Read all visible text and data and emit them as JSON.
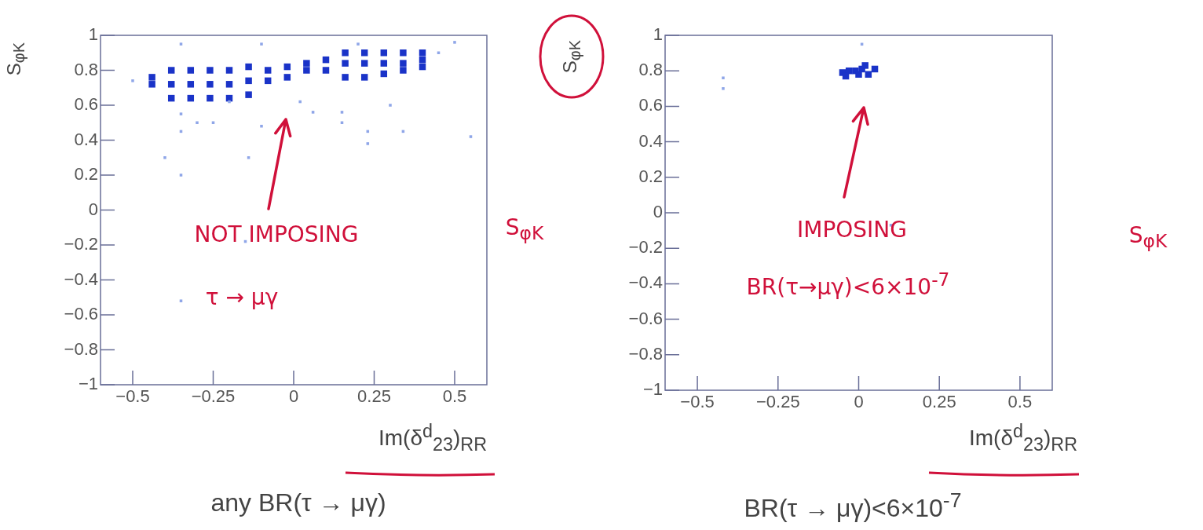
{
  "chart_data": [
    {
      "type": "scatter",
      "title": "any BR(τ → μγ)",
      "xlabel": "Im(δ$^{d}$$_{23}$)$_{RR}$",
      "ylabel": "S$_{φK}$",
      "xlim": [
        -0.6,
        0.6
      ],
      "ylim": [
        -1,
        1
      ],
      "xticks": [
        -0.5,
        -0.25,
        0,
        0.25,
        0.5
      ],
      "yticks": [
        -1,
        -0.8,
        -0.6,
        -0.4,
        -0.2,
        0,
        0.2,
        0.4,
        0.6,
        0.8,
        1
      ],
      "marker": "square",
      "series": [
        {
          "color": "#8fa6e8",
          "x": [
            -0.5,
            -0.35,
            -0.35,
            -0.35,
            -0.4,
            -0.3,
            -0.25,
            -0.14,
            -0.1,
            0.02,
            0.15,
            0.15,
            0.23,
            0.23,
            0.3,
            0.34,
            0.45,
            0.55,
            -0.35,
            -0.15,
            -0.35,
            -0.1,
            0.2,
            0.5,
            0.06,
            -0.2
          ],
          "values": [
            0.74,
            0.55,
            0.45,
            0.2,
            0.3,
            0.5,
            0.5,
            0.3,
            0.48,
            0.62,
            0.5,
            0.56,
            0.45,
            0.38,
            0.6,
            0.45,
            0.9,
            0.42,
            -0.52,
            -0.18,
            0.95,
            0.95,
            0.95,
            0.96,
            0.56,
            0.62
          ]
        },
        {
          "color": "#1a33c8",
          "x": [
            -0.44,
            -0.44,
            -0.38,
            -0.38,
            -0.38,
            -0.32,
            -0.32,
            -0.32,
            -0.26,
            -0.26,
            -0.26,
            -0.2,
            -0.2,
            -0.2,
            -0.14,
            -0.14,
            -0.14,
            -0.08,
            -0.08,
            -0.02,
            -0.02,
            0.04,
            0.04,
            0.1,
            0.1,
            0.16,
            0.16,
            0.16,
            0.22,
            0.22,
            0.22,
            0.28,
            0.28,
            0.28,
            0.34,
            0.34,
            0.34,
            0.4,
            0.4,
            0.4
          ],
          "values": [
            0.72,
            0.76,
            0.64,
            0.72,
            0.8,
            0.64,
            0.72,
            0.8,
            0.64,
            0.72,
            0.8,
            0.64,
            0.72,
            0.8,
            0.66,
            0.74,
            0.82,
            0.74,
            0.8,
            0.76,
            0.82,
            0.8,
            0.84,
            0.8,
            0.86,
            0.76,
            0.84,
            0.9,
            0.76,
            0.84,
            0.9,
            0.78,
            0.84,
            0.9,
            0.8,
            0.84,
            0.9,
            0.82,
            0.86,
            0.9
          ]
        }
      ],
      "annotations": [
        "NOT IMPOSING",
        "τ → μγ",
        "S$_{φK}$"
      ]
    },
    {
      "type": "scatter",
      "title": "BR(τ → μγ)<6×10$^{-7}$",
      "xlabel": "Im(δ$^{d}$$_{23}$)$_{RR}$",
      "ylabel": "S$_{φK}$",
      "xlim": [
        -0.6,
        0.6
      ],
      "ylim": [
        -1,
        1
      ],
      "xticks": [
        -0.5,
        -0.25,
        0,
        0.25,
        0.5
      ],
      "yticks": [
        -1,
        -0.8,
        -0.6,
        -0.4,
        -0.2,
        0,
        0.2,
        0.4,
        0.6,
        0.8,
        1
      ],
      "marker": "square",
      "series": [
        {
          "color": "#8fa6e8",
          "x": [
            -0.42,
            -0.42,
            0.01,
            0.1
          ],
          "values": [
            0.7,
            0.76,
            0.95,
            -0.07
          ]
        },
        {
          "color": "#1a33c8",
          "x": [
            -0.05,
            -0.03,
            -0.01,
            0.01,
            0.03,
            0.05,
            -0.04,
            0,
            0.03,
            0.02
          ],
          "values": [
            0.79,
            0.8,
            0.8,
            0.81,
            null,
            0.81,
            0.77,
            0.78,
            0.78,
            0.83
          ]
        }
      ],
      "annotations": [
        "IMPOSING",
        "BR(τ→μγ)<6×10$^{-7}$",
        "S$_{φK}$"
      ]
    }
  ]
}
